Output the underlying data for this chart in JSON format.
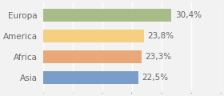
{
  "categories": [
    "Europa",
    "America",
    "Africa",
    "Asia"
  ],
  "values": [
    30.4,
    23.8,
    23.3,
    22.5
  ],
  "labels": [
    "30,4%",
    "23,8%",
    "23,3%",
    "22,5%"
  ],
  "bar_colors": [
    "#a8bc8a",
    "#f5d080",
    "#e8a878",
    "#7b9ec8"
  ],
  "background_color": "#f2f2f2",
  "xlim": [
    0,
    42
  ],
  "bar_height": 0.6,
  "label_fontsize": 7.5,
  "value_fontsize": 7.5,
  "text_color": "#666666"
}
